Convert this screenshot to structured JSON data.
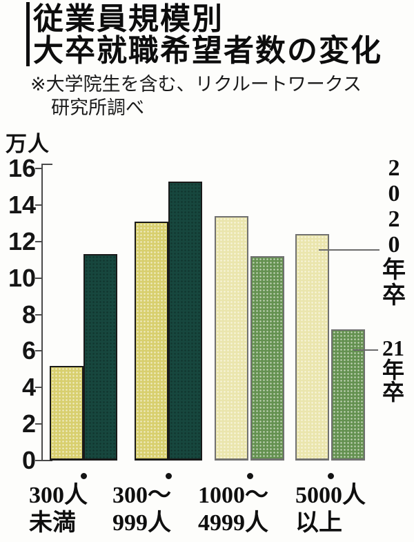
{
  "title": {
    "line1": "従業員規模別",
    "line2": "大卒就職希望者数の変化"
  },
  "note": {
    "line1": "※大学院生を含む、リクルートワークス",
    "line2": "研究所調べ"
  },
  "unit_label": "万人",
  "legend": {
    "series2020": {
      "label": "2020年卒",
      "chars": [
        "2",
        "0",
        "2",
        "0",
        "年",
        "卒"
      ]
    },
    "series21": {
      "label": "21年卒",
      "chars": [
        "21",
        "年",
        "卒"
      ]
    }
  },
  "chart_data": {
    "type": "bar",
    "title": "従業員規模別 大卒就職希望者数の変化",
    "note": "※大学院生を含む、リクルートワークス研究所調べ",
    "unit": "万人",
    "categories": [
      [
        "300人",
        "未満"
      ],
      [
        "300〜",
        "999人"
      ],
      [
        "1000〜",
        "4999人"
      ],
      [
        "5000人",
        "以上"
      ]
    ],
    "series": [
      {
        "name": "2020年卒",
        "values": [
          5.2,
          13.1,
          13.4,
          12.4
        ]
      },
      {
        "name": "21年卒",
        "values": [
          11.3,
          15.3,
          11.2,
          7.2
        ]
      }
    ],
    "ylim": [
      0,
      16
    ],
    "y_ticks": [
      0,
      2,
      4,
      6,
      8,
      10,
      12,
      14,
      16
    ],
    "grid": false,
    "legend_position": "right",
    "bar_colors": {
      "groups12_2020": "#d8cf6e",
      "groups12_21": "#17473e",
      "groups34_2020": "#eae5ad",
      "groups34_21": "#649150"
    },
    "axis_color": "#4a4a4a",
    "text_color": "#0f0f0f"
  }
}
